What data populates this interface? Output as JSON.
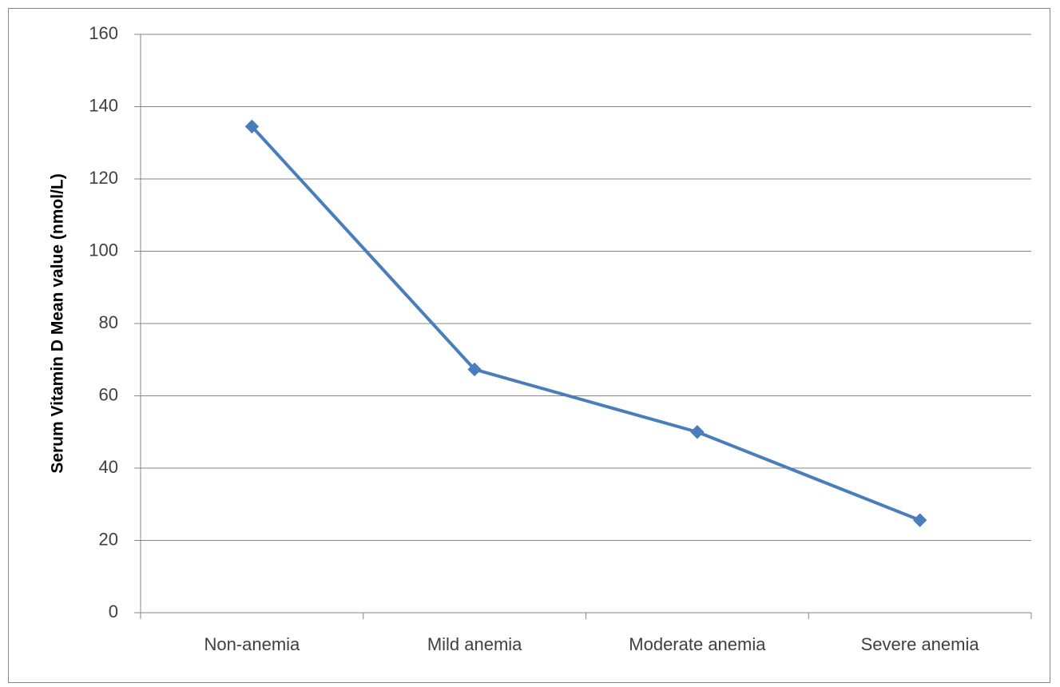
{
  "chart_data": {
    "type": "line",
    "title": "",
    "xlabel": "",
    "ylabel": "Serum Vitamin D Mean value (nmol/L)",
    "categories": [
      "Non-anemia",
      "Mild anemia",
      "Moderate anemia",
      "Severe anemia"
    ],
    "series": [
      {
        "values": [
          134.5,
          67.3,
          50.0,
          25.6
        ],
        "color": "#4a7ebb",
        "marker": "diamond"
      }
    ],
    "ylim": [
      0,
      160
    ],
    "yticks": [
      0,
      20,
      40,
      60,
      80,
      100,
      120,
      140,
      160
    ],
    "grid": true,
    "legend": "none",
    "gridline_color": "#868686",
    "axis_color": "#868686"
  }
}
